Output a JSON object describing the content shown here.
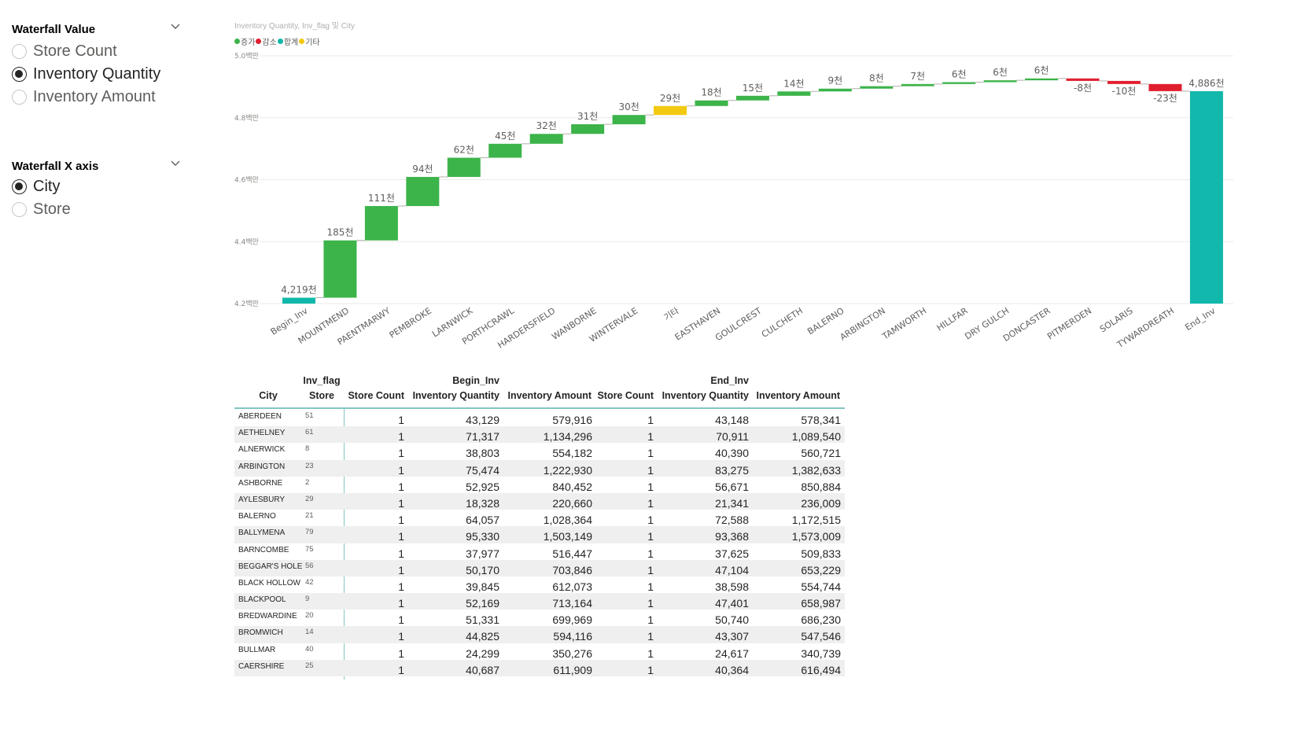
{
  "slicers": {
    "value": {
      "title": "Waterfall Value",
      "options": [
        {
          "label": "Store Count",
          "selected": false
        },
        {
          "label": "Inventory Quantity",
          "selected": true
        },
        {
          "label": "Inventory Amount",
          "selected": false
        }
      ]
    },
    "xaxis": {
      "title": "Waterfall X axis",
      "options": [
        {
          "label": "City",
          "selected": true
        },
        {
          "label": "Store",
          "selected": false
        }
      ]
    }
  },
  "chart": {
    "title": "Inventory Quantity, Inv_flag 및 City",
    "legend": [
      {
        "label": "증가",
        "color": "#3cb44a"
      },
      {
        "label": "감소",
        "color": "#e01f2e"
      },
      {
        "label": "합계",
        "color": "#11b8ab"
      },
      {
        "label": "기타",
        "color": "#f3c911"
      }
    ]
  },
  "chart_data": {
    "type": "waterfall",
    "y_tick_labels": [
      "4.2백만",
      "4.4백만",
      "4.6백만",
      "4.8백만",
      "5.0백만"
    ],
    "y_tick_values": [
      4200000,
      4400000,
      4600000,
      4800000,
      5000000
    ],
    "ylim": [
      4200000,
      5000000
    ],
    "grid": true,
    "legend_position": "top-left",
    "steps": [
      {
        "category": "Begin_Inv",
        "kind": "total",
        "value": 4219000,
        "label": "4,219천"
      },
      {
        "category": "MOUNTMEND",
        "kind": "increase",
        "value": 185000,
        "label": "185천"
      },
      {
        "category": "PAENTMARWY",
        "kind": "increase",
        "value": 111000,
        "label": "111천"
      },
      {
        "category": "PEMBROKE",
        "kind": "increase",
        "value": 94000,
        "label": "94천"
      },
      {
        "category": "LARNWICK",
        "kind": "increase",
        "value": 62000,
        "label": "62천"
      },
      {
        "category": "PORTHCRAWL",
        "kind": "increase",
        "value": 45000,
        "label": "45천"
      },
      {
        "category": "HARDERSFIELD",
        "kind": "increase",
        "value": 32000,
        "label": "32천"
      },
      {
        "category": "WANBORNE",
        "kind": "increase",
        "value": 31000,
        "label": "31천"
      },
      {
        "category": "WINTERVALE",
        "kind": "increase",
        "value": 30000,
        "label": "30천"
      },
      {
        "category": "기타",
        "kind": "other",
        "value": 29000,
        "label": "29천"
      },
      {
        "category": "EASTHAVEN",
        "kind": "increase",
        "value": 18000,
        "label": "18천"
      },
      {
        "category": "GOULCREST",
        "kind": "increase",
        "value": 15000,
        "label": "15천"
      },
      {
        "category": "CULCHETH",
        "kind": "increase",
        "value": 14000,
        "label": "14천"
      },
      {
        "category": "BALERNO",
        "kind": "increase",
        "value": 9000,
        "label": "9천"
      },
      {
        "category": "ARBINGTON",
        "kind": "increase",
        "value": 8000,
        "label": "8천"
      },
      {
        "category": "TAMWORTH",
        "kind": "increase",
        "value": 7000,
        "label": "7천"
      },
      {
        "category": "HILLFAR",
        "kind": "increase",
        "value": 6000,
        "label": "6천"
      },
      {
        "category": "DRY GULCH",
        "kind": "increase",
        "value": 6000,
        "label": "6천"
      },
      {
        "category": "DONCASTER",
        "kind": "increase",
        "value": 6000,
        "label": "6천"
      },
      {
        "category": "PITMERDEN",
        "kind": "decrease",
        "value": -8000,
        "label": "-8천"
      },
      {
        "category": "SOLARIS",
        "kind": "decrease",
        "value": -10000,
        "label": "-10천"
      },
      {
        "category": "TYWARDREATH",
        "kind": "decrease",
        "value": -23000,
        "label": "-23천"
      },
      {
        "category": "End_Inv",
        "kind": "total",
        "value": 4886000,
        "label": "4,886천"
      }
    ]
  },
  "matrix": {
    "row_header": "City",
    "flag_header": "Inv_flag",
    "store_header": "Store",
    "groups": [
      "Begin_Inv",
      "End_Inv"
    ],
    "measures": [
      "Store Count",
      "Inventory Quantity",
      "Inventory Amount",
      "Store Count",
      "Inventory Quantity",
      "Inventory Amount"
    ],
    "rows": [
      {
        "city": "ABERDEEN",
        "store": "51",
        "v": [
          "1",
          "43,129",
          "579,916",
          "1",
          "43,148",
          "578,341"
        ]
      },
      {
        "city": "AETHELNEY",
        "store": "61",
        "v": [
          "1",
          "71,317",
          "1,134,296",
          "1",
          "70,911",
          "1,089,540"
        ]
      },
      {
        "city": "ALNERWICK",
        "store": "8",
        "v": [
          "1",
          "38,803",
          "554,182",
          "1",
          "40,390",
          "560,721"
        ]
      },
      {
        "city": "ARBINGTON",
        "store": "23",
        "v": [
          "1",
          "75,474",
          "1,222,930",
          "1",
          "83,275",
          "1,382,633"
        ]
      },
      {
        "city": "ASHBORNE",
        "store": "2",
        "v": [
          "1",
          "52,925",
          "840,452",
          "1",
          "56,671",
          "850,884"
        ]
      },
      {
        "city": "AYLESBURY",
        "store": "29",
        "v": [
          "1",
          "18,328",
          "220,660",
          "1",
          "21,341",
          "236,009"
        ]
      },
      {
        "city": "BALERNO",
        "store": "21",
        "v": [
          "1",
          "64,057",
          "1,028,364",
          "1",
          "72,588",
          "1,172,515"
        ]
      },
      {
        "city": "BALLYMENA",
        "store": "79",
        "v": [
          "1",
          "95,330",
          "1,503,149",
          "1",
          "93,368",
          "1,573,009"
        ]
      },
      {
        "city": "BARNCOMBE",
        "store": "75",
        "v": [
          "1",
          "37,977",
          "516,447",
          "1",
          "37,625",
          "509,833"
        ]
      },
      {
        "city": "BEGGAR'S HOLE",
        "store": "56",
        "v": [
          "1",
          "50,170",
          "703,846",
          "1",
          "47,104",
          "653,229"
        ]
      },
      {
        "city": "BLACK HOLLOW",
        "store": "42",
        "v": [
          "1",
          "39,845",
          "612,073",
          "1",
          "38,598",
          "554,744"
        ]
      },
      {
        "city": "BLACKPOOL",
        "store": "9",
        "v": [
          "1",
          "52,169",
          "713,164",
          "1",
          "47,401",
          "658,987"
        ]
      },
      {
        "city": "BREDWARDINE",
        "store": "20",
        "v": [
          "1",
          "51,331",
          "699,969",
          "1",
          "50,740",
          "686,230"
        ]
      },
      {
        "city": "BROMWICH",
        "store": "14",
        "v": [
          "1",
          "44,825",
          "594,116",
          "1",
          "43,307",
          "547,546"
        ]
      },
      {
        "city": "BULLMAR",
        "store": "40",
        "v": [
          "1",
          "24,299",
          "350,276",
          "1",
          "24,617",
          "340,739"
        ]
      },
      {
        "city": "CAERSHIRE",
        "store": "25",
        "v": [
          "1",
          "40,687",
          "611,909",
          "1",
          "40,364",
          "616,494"
        ]
      }
    ]
  }
}
